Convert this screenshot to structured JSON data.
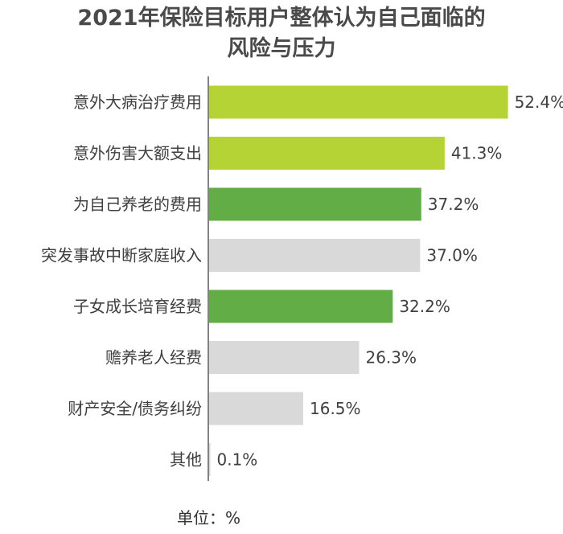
{
  "chart_data": {
    "type": "bar",
    "orientation": "horizontal",
    "title_lines": [
      "2021年保险目标用户整体认为自己面临的",
      "风险与压力"
    ],
    "categories": [
      "意外大病治疗费用",
      "意外伤害大额支出",
      "为自己养老的费用",
      "突发事故中断家庭收入",
      "子女成长培育经费",
      "赡养老人经费",
      "财产安全/债务纠纷",
      "其他"
    ],
    "values": [
      52.4,
      41.3,
      37.2,
      37.0,
      32.2,
      26.3,
      16.5,
      0.1
    ],
    "value_labels": [
      "52.4%",
      "41.3%",
      "37.2%",
      "37.0%",
      "32.2%",
      "26.3%",
      "16.5%",
      "0.1%"
    ],
    "bar_colors": [
      "#b5d334",
      "#b5d334",
      "#62ad45",
      "#d9d9d9",
      "#62ad45",
      "#d9d9d9",
      "#d9d9d9",
      "#d9d9d9"
    ],
    "xlim": [
      0,
      55
    ],
    "grid": false,
    "legend": "none"
  },
  "unit_label": "单位：%"
}
